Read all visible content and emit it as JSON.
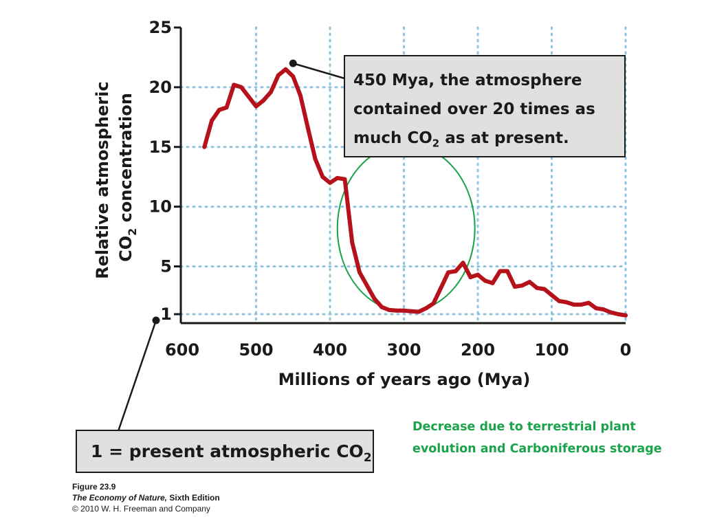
{
  "chart_data": {
    "type": "line",
    "xlabel": "Millions of years ago (Mya)",
    "ylabel": {
      "line1": "Relative atmospheric",
      "line2_prefix": "CO",
      "line2_sub": "2",
      "line2_suffix": " concentration"
    },
    "x_ticks": [
      600,
      500,
      400,
      300,
      200,
      100,
      0
    ],
    "x_tick_labels": [
      "600",
      "500",
      "400",
      "300",
      "200",
      "100",
      "0"
    ],
    "y_ticks": [
      1,
      5,
      10,
      15,
      20,
      25
    ],
    "y_tick_labels": [
      "1",
      "5",
      "10",
      "15",
      "20",
      "25"
    ],
    "xlim": [
      600,
      0
    ],
    "ylim": [
      0,
      25
    ],
    "x_reversed": true,
    "grid": true,
    "series": [
      {
        "color": "#b5121b",
        "x": [
          570,
          560,
          550,
          540,
          530,
          520,
          510,
          500,
          490,
          480,
          470,
          460,
          450,
          440,
          430,
          420,
          410,
          400,
          390,
          380,
          370,
          360,
          350,
          340,
          330,
          320,
          310,
          300,
          290,
          280,
          270,
          260,
          250,
          240,
          230,
          220,
          210,
          200,
          190,
          180,
          170,
          160,
          150,
          140,
          130,
          120,
          110,
          100,
          90,
          80,
          70,
          60,
          50,
          40,
          30,
          20,
          10,
          0
        ],
        "y": [
          15.0,
          17.2,
          18.1,
          18.3,
          20.2,
          20.0,
          19.2,
          18.4,
          18.9,
          19.6,
          21.0,
          21.5,
          20.9,
          19.3,
          16.6,
          14.0,
          12.5,
          12.0,
          12.4,
          12.3,
          7.0,
          4.5,
          3.4,
          2.3,
          1.6,
          1.35,
          1.3,
          1.3,
          1.25,
          1.2,
          1.5,
          1.9,
          3.2,
          4.5,
          4.6,
          5.3,
          4.1,
          4.3,
          3.8,
          3.6,
          4.6,
          4.6,
          3.3,
          3.4,
          3.7,
          3.2,
          3.1,
          2.6,
          2.1,
          2.0,
          1.8,
          1.8,
          1.95,
          1.5,
          1.4,
          1.15,
          1.0,
          0.9
        ]
      }
    ],
    "annotations": {
      "callout_top": {
        "line1": "450 Mya, the atmosphere",
        "line2": "contained over 20 times as",
        "line3_prefix": "much CO",
        "line3_sub": "2",
        "line3_suffix": " as at present.",
        "points_to_x": 450,
        "points_to_y": 22
      },
      "callout_bottom": {
        "prefix": "1 = present atmospheric CO",
        "sub": "2",
        "points_to_y": 1
      },
      "highlight_ellipse": {
        "color": "#1aa34a",
        "cx": 297,
        "cy": 8.2,
        "rx": 93,
        "ry": 7.0
      }
    }
  },
  "green_note": {
    "line1": "Decrease due to terrestrial plant",
    "line2": "evolution and Carboniferous storage",
    "color": "#1aa34a"
  },
  "credit": {
    "line1": "Figure 23.9",
    "line2_italic": "The Economy of Nature,",
    "line2_rest": " Sixth Edition",
    "line3": "© 2010 W. H. Freeman and Company"
  },
  "colors": {
    "axis": "#1a1a1a",
    "grid": "#8fc3e0",
    "callout_fill": "#e0e0e1"
  }
}
